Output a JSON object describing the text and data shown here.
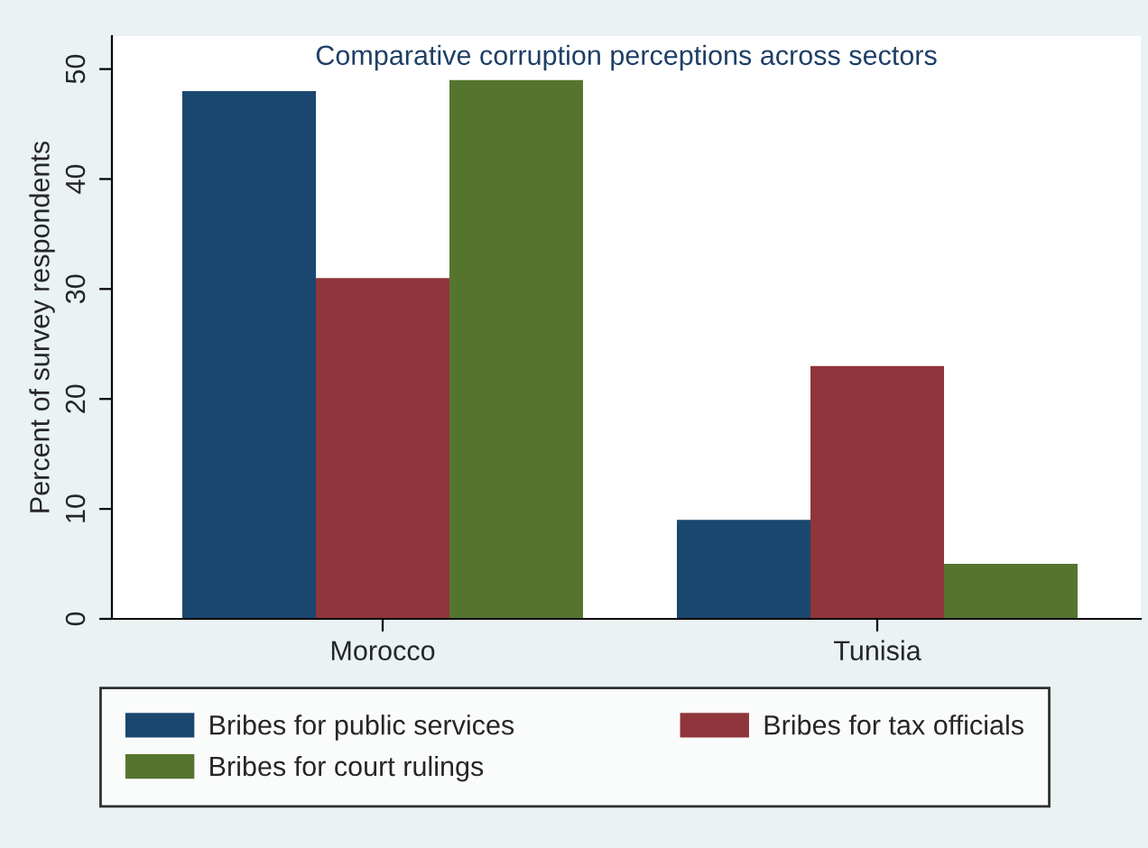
{
  "chart_data": {
    "type": "bar",
    "title": "Comparative corruption perceptions across sectors",
    "ylabel": "Percent of survey respondents",
    "categories": [
      "Morocco",
      "Tunisia"
    ],
    "series": [
      {
        "name": "Bribes for public services",
        "color": "#1a476f",
        "values": [
          48,
          9
        ]
      },
      {
        "name": "Bribes for tax officials",
        "color": "#90353b",
        "values": [
          31,
          23
        ]
      },
      {
        "name": "Bribes for court rulings",
        "color": "#55752f",
        "values": [
          49,
          5
        ]
      }
    ],
    "ylim": [
      0,
      53
    ],
    "yticks": [
      0,
      10,
      20,
      30,
      40,
      50
    ],
    "grid": false,
    "legend": "bottom"
  }
}
